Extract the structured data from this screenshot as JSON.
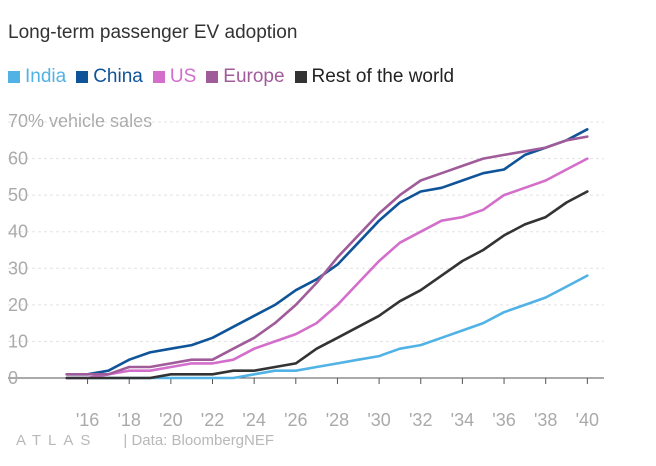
{
  "header": {
    "title": "Long-term passenger EV adoption",
    "y_axis_title": "70% vehicle sales"
  },
  "footer": {
    "brand": "ATLAS",
    "source": "| Data: BloombergNEF"
  },
  "chart_data": {
    "type": "line",
    "title": "Long-term passenger EV adoption",
    "ylabel": "70% vehicle sales",
    "xlabel": "",
    "ylim": [
      0,
      70
    ],
    "y_ticks": [
      0,
      10,
      20,
      30,
      40,
      50,
      60,
      70
    ],
    "y_tick_labels": [
      "0",
      "10",
      "20",
      "30",
      "40",
      "50",
      "60",
      ""
    ],
    "x_tick_years": [
      2016,
      2018,
      2020,
      2022,
      2024,
      2026,
      2028,
      2030,
      2032,
      2034,
      2036,
      2038,
      2040
    ],
    "x_tick_labels": [
      "'16",
      "'18",
      "'20",
      "'22",
      "'24",
      "'26",
      "'28",
      "'30",
      "'32",
      "'34",
      "'36",
      "'38",
      "'40"
    ],
    "x": [
      2015,
      2016,
      2017,
      2018,
      2019,
      2020,
      2021,
      2022,
      2023,
      2024,
      2025,
      2026,
      2027,
      2028,
      2029,
      2030,
      2031,
      2032,
      2033,
      2034,
      2035,
      2036,
      2037,
      2038,
      2039,
      2040
    ],
    "grid": true,
    "legend_position": "top-left",
    "series": [
      {
        "name": "India",
        "color": "#51b2e5",
        "values": [
          0,
          0,
          0,
          0,
          0,
          0,
          0,
          0,
          0,
          1,
          2,
          2,
          3,
          4,
          5,
          6,
          8,
          9,
          11,
          13,
          15,
          18,
          20,
          22,
          25,
          28
        ]
      },
      {
        "name": "China",
        "color": "#0f5499",
        "values": [
          1,
          1,
          2,
          5,
          7,
          8,
          9,
          11,
          14,
          17,
          20,
          24,
          27,
          31,
          37,
          43,
          48,
          51,
          52,
          54,
          56,
          57,
          61,
          63,
          65,
          68
        ]
      },
      {
        "name": "US",
        "color": "#d36fcb",
        "values": [
          0,
          0,
          1,
          2,
          2,
          3,
          4,
          4,
          5,
          8,
          10,
          12,
          15,
          20,
          26,
          32,
          37,
          40,
          43,
          44,
          46,
          50,
          52,
          54,
          57,
          60
        ]
      },
      {
        "name": "Europe",
        "color": "#a05b99",
        "values": [
          1,
          1,
          1,
          3,
          3,
          4,
          5,
          5,
          8,
          11,
          15,
          20,
          26,
          33,
          39,
          45,
          50,
          54,
          56,
          58,
          60,
          61,
          62,
          63,
          65,
          66
        ]
      },
      {
        "name": "Rest of the world",
        "color": "#333333",
        "values": [
          0,
          0,
          0,
          0,
          0,
          1,
          1,
          1,
          2,
          2,
          3,
          4,
          8,
          11,
          14,
          17,
          21,
          24,
          28,
          32,
          35,
          39,
          42,
          44,
          48,
          51
        ]
      }
    ]
  }
}
